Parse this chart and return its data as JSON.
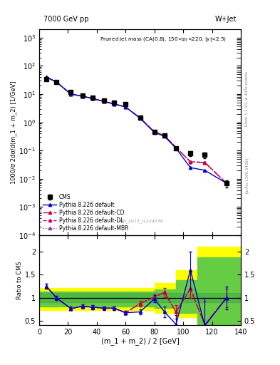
{
  "title_top": "7000 GeV pp",
  "title_right": "W+Jet",
  "annotation": "Pruned jet mass (CA(0.8), 150<p$_T$<220, |y|<2.5)",
  "watermark": "CMS_2013_I1224539",
  "ylabel_main": "1000/σ 2dσ/d(m_1 + m_2) [1/GeV]",
  "ylabel_ratio": "Ratio to CMS",
  "xlabel": "(m_1 + m_2) / 2 [GeV]",
  "right_label": "Rivet 3.1.10, ≥ 400k events",
  "arxiv_label": "[arXiv:1306.3436]",
  "xdata": [
    5,
    12,
    22,
    30,
    37,
    45,
    52,
    60,
    70,
    80,
    87,
    95,
    105,
    115,
    130
  ],
  "cms_y": [
    35,
    27,
    12,
    9.0,
    7.5,
    6.0,
    5.0,
    4.5,
    1.5,
    0.45,
    0.35,
    0.12,
    0.08,
    0.07,
    0.007
  ],
  "cms_yerr": [
    3,
    2,
    1.2,
    0.8,
    0.6,
    0.5,
    0.4,
    0.4,
    0.15,
    0.05,
    0.04,
    0.015,
    0.015,
    0.015,
    0.002
  ],
  "py_default_y": [
    40,
    27,
    10,
    8.5,
    7.0,
    5.5,
    4.5,
    3.5,
    1.4,
    0.44,
    0.32,
    0.12,
    0.025,
    0.02,
    0.007
  ],
  "py_CD_y": [
    40,
    27,
    10,
    8.5,
    7.0,
    5.5,
    4.5,
    3.5,
    1.45,
    0.46,
    0.34,
    0.13,
    0.04,
    0.038,
    0.007
  ],
  "py_DL_y": [
    40,
    27,
    10,
    8.5,
    7.0,
    5.5,
    4.5,
    3.5,
    1.45,
    0.46,
    0.34,
    0.13,
    0.04,
    0.038,
    0.007
  ],
  "py_MBR_y": [
    40,
    27,
    10,
    8.5,
    7.0,
    5.5,
    4.5,
    3.5,
    1.45,
    0.46,
    0.34,
    0.13,
    0.04,
    0.038,
    0.007
  ],
  "ratio_default": [
    1.25,
    1.0,
    0.77,
    0.82,
    0.8,
    0.78,
    0.78,
    0.68,
    0.7,
    0.98,
    0.7,
    0.43,
    1.6,
    0.4,
    1.0
  ],
  "ratio_CD": [
    1.25,
    1.0,
    0.77,
    0.82,
    0.8,
    0.78,
    0.78,
    0.68,
    0.88,
    1.02,
    1.12,
    0.7,
    1.2,
    0.42,
    1.0
  ],
  "ratio_DL": [
    1.25,
    1.0,
    0.77,
    0.82,
    0.8,
    0.78,
    0.78,
    0.68,
    0.88,
    1.02,
    1.12,
    0.7,
    1.2,
    0.42,
    1.0
  ],
  "ratio_MBR": [
    1.25,
    1.0,
    0.77,
    0.82,
    0.8,
    0.78,
    0.78,
    0.68,
    0.88,
    1.02,
    1.12,
    0.7,
    1.2,
    0.42,
    1.0
  ],
  "ratio_default_err": [
    0.05,
    0.04,
    0.04,
    0.04,
    0.04,
    0.04,
    0.04,
    0.04,
    0.06,
    0.08,
    0.12,
    0.2,
    0.4,
    0.6,
    0.25
  ],
  "ratio_CD_err": [
    0.05,
    0.04,
    0.04,
    0.04,
    0.04,
    0.04,
    0.04,
    0.04,
    0.06,
    0.06,
    0.1,
    0.15,
    0.2,
    0.5,
    0.2
  ],
  "yellow_band_x_edges": [
    0,
    65,
    80,
    95,
    110,
    140
  ],
  "yellow_band_lo": [
    0.73,
    0.73,
    0.68,
    0.58,
    0.35,
    0.35
  ],
  "yellow_band_hi": [
    1.22,
    1.22,
    1.32,
    1.6,
    2.1,
    2.3
  ],
  "green_band2_x_edges": [
    0,
    65,
    80,
    95,
    110,
    140
  ],
  "green_band2_lo": [
    0.82,
    0.82,
    0.78,
    0.68,
    0.42,
    0.42
  ],
  "green_band2_hi": [
    1.13,
    1.13,
    1.18,
    1.38,
    1.88,
    2.05
  ],
  "color_default": "#0000cc",
  "color_CD": "#cc0033",
  "color_DL": "#cc0066",
  "color_MBR": "#9933aa",
  "color_cms": "#000000",
  "ylim_main": [
    0.0001,
    2000
  ],
  "ylim_ratio": [
    0.42,
    2.35
  ],
  "xlim": [
    0,
    140
  ]
}
